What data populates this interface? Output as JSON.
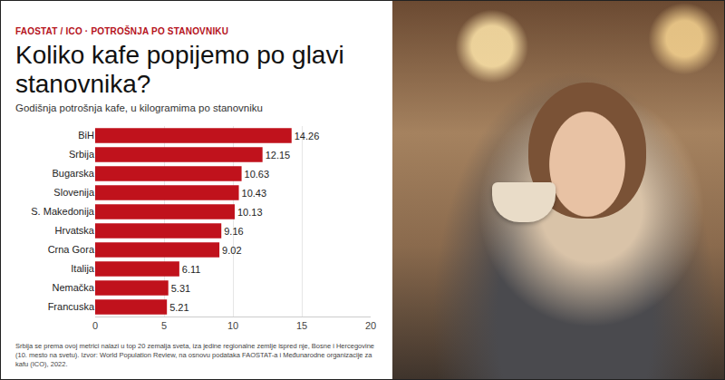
{
  "chart_data": {
    "type": "bar",
    "kicker": "FAOSTAT / ICO · POTROŠNJA PO STANOVNIKU",
    "title": "Koliko kafe popijemo po glavi stanovnika?",
    "subtitle": "Godišnja potrošnja kafe, u kilogramima po stanovniku",
    "note": "Srbija se prema ovoj metrici nalazi u top 20 zemalja sveta, iza jedine regionalne zemlje ispred nje, Bosne i Hercegovine (10. mesto na svetu). Izvor: World Population Review, na osnovu podataka FAOSTAT-a i Međunarodne organizacije za kafu (ICO), 2022.",
    "categories": [
      "BiH",
      "Srbija",
      "Bugarska",
      "Slovenija",
      "S. Makedonija",
      "Hrvatska",
      "Crna Gora",
      "Italija",
      "Nemačka",
      "Francuska"
    ],
    "values": [
      14.26,
      12.15,
      10.63,
      10.43,
      10.13,
      9.16,
      9.02,
      6.11,
      5.31,
      5.21
    ],
    "color": "#c0121c",
    "orientation": "horizontal",
    "xlim": [
      0,
      20
    ],
    "xticks": [
      0,
      5,
      10,
      15,
      20
    ],
    "grid": true,
    "data_labels": true
  }
}
